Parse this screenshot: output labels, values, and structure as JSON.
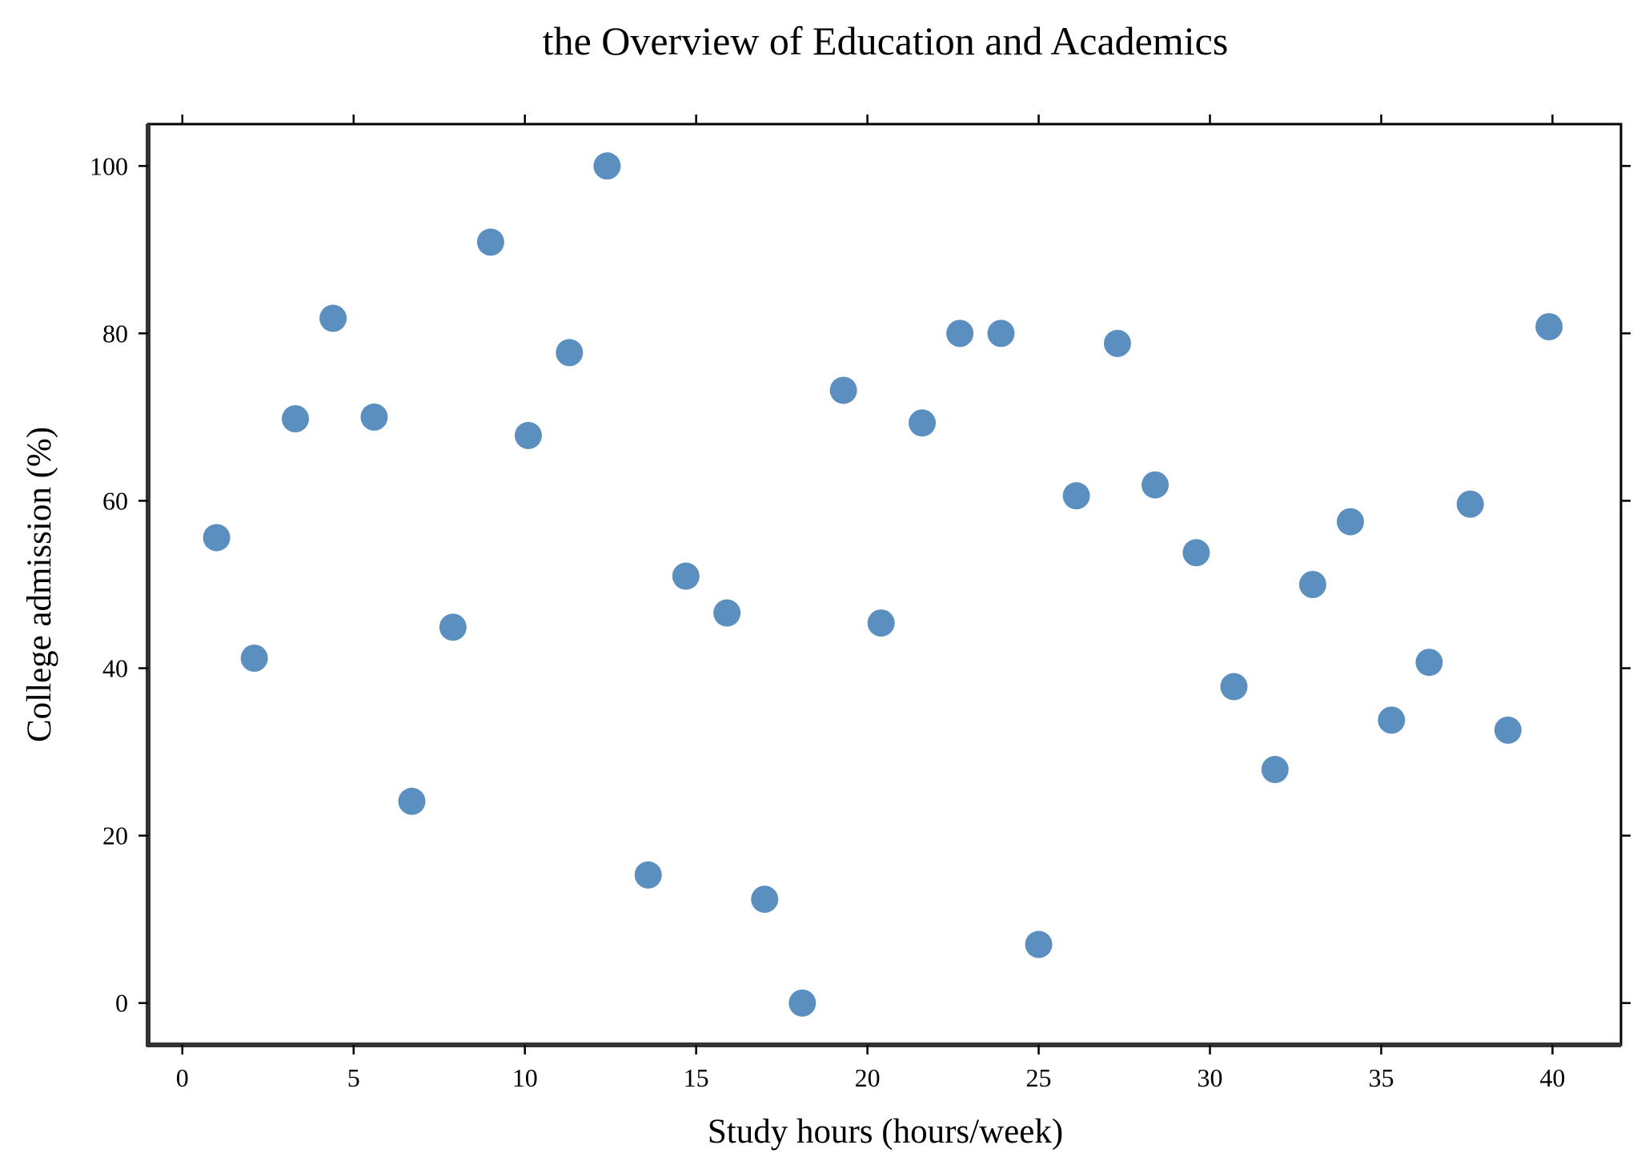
{
  "chart_data": {
    "type": "scatter",
    "title": "the Overview of Education and Academics",
    "xlabel": "Study hours (hours/week)",
    "ylabel": "College admission (%)",
    "xlim": [
      -1,
      42
    ],
    "ylim": [
      -5,
      105
    ],
    "xticks": [
      0,
      5,
      10,
      15,
      20,
      25,
      30,
      35,
      40
    ],
    "yticks": [
      0,
      20,
      40,
      60,
      80,
      100
    ],
    "grid": false,
    "legend": "none",
    "marker_color": "#5b8fc0",
    "series": [
      {
        "x": [
          1.0,
          2.1,
          3.3,
          4.4,
          5.6,
          6.7,
          7.9,
          9.0,
          10.1,
          11.3,
          12.4,
          13.6,
          14.7,
          15.9,
          17.0,
          18.1,
          19.3,
          20.4,
          21.6,
          22.7,
          23.9,
          25.0,
          26.1,
          27.3,
          28.4,
          29.6,
          30.7,
          31.9,
          33.0,
          34.1,
          35.3,
          36.4,
          37.6,
          38.7,
          39.9
        ],
        "y": [
          55.6,
          41.2,
          69.8,
          81.8,
          70.0,
          24.1,
          44.9,
          90.9,
          67.8,
          77.7,
          100.0,
          15.3,
          51.0,
          46.6,
          12.4,
          0.0,
          73.2,
          45.4,
          69.3,
          80.0,
          80.0,
          7.0,
          60.6,
          78.8,
          61.9,
          53.8,
          37.8,
          27.9,
          50.0,
          57.5,
          33.8,
          40.7,
          59.6,
          32.6,
          80.8
        ]
      }
    ]
  }
}
